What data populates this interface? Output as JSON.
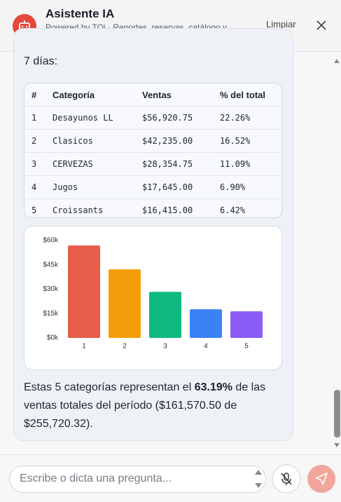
{
  "header": {
    "title": "Asistente IA",
    "subtitle": "Powered by TOi · Reportes, reservas, catálogo y órdenes",
    "clear_button": "Limpiar"
  },
  "message": {
    "intro": "7 días:",
    "table": {
      "columns": [
        "#",
        "Categoría",
        "Ventas",
        "% del total"
      ],
      "rows": [
        [
          "1",
          "Desayunos LL",
          "$56,920.75",
          "22.26%"
        ],
        [
          "2",
          "Clasicos",
          "$42,235.00",
          "16.52%"
        ],
        [
          "3",
          "CERVEZAS",
          "$28,354.75",
          "11.09%"
        ],
        [
          "4",
          "Jugos",
          "$17,645.00",
          "6.90%"
        ],
        [
          "5",
          "Croissants",
          "$16,415.00",
          "6.42%"
        ]
      ]
    },
    "summary": {
      "before": "Estas 5 categorías representan el ",
      "highlight": "63.19%",
      "after": " de las ventas totales del período ($161,570.50 de $255,720.32)."
    }
  },
  "chart_data": {
    "type": "bar",
    "categories": [
      "1",
      "2",
      "3",
      "4",
      "5"
    ],
    "values": [
      56920.75,
      42235,
      28354.75,
      17645,
      16415
    ],
    "colors": [
      "#e85d4a",
      "#f59e0b",
      "#10b981",
      "#3b82f6",
      "#8b5cf6"
    ],
    "ylim": [
      0,
      60000
    ],
    "yticks": [
      {
        "value": 0,
        "label": "$0k"
      },
      {
        "value": 15000,
        "label": "$15k"
      },
      {
        "value": 30000,
        "label": "$30k"
      },
      {
        "value": 45000,
        "label": "$45k"
      },
      {
        "value": 60000,
        "label": "$60k"
      }
    ],
    "grid": false
  },
  "input": {
    "placeholder": "Escribe o dicta una pregunta..."
  }
}
